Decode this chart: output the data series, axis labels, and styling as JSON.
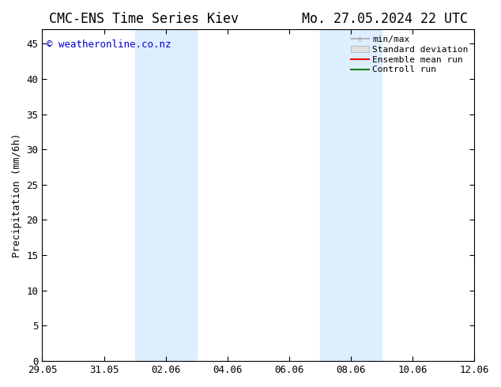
{
  "title_left": "CMC-ENS Time Series Kiev",
  "title_right": "Mo. 27.05.2024 22 UTC",
  "ylabel": "Precipitation (mm/6h)",
  "watermark": "© weatheronline.co.nz",
  "watermark_color": "#0000cc",
  "ylim": [
    0,
    47
  ],
  "yticks": [
    0,
    5,
    10,
    15,
    20,
    25,
    30,
    35,
    40,
    45
  ],
  "xtick_labels": [
    "29.05",
    "31.05",
    "02.06",
    "04.06",
    "06.06",
    "08.06",
    "10.06",
    "12.06"
  ],
  "xtick_positions": [
    0,
    2,
    4,
    6,
    8,
    10,
    12,
    14
  ],
  "background_color": "#ffffff",
  "plot_bg_color": "#ffffff",
  "shade_regions": [
    {
      "xstart": 3.0,
      "xend": 5.0
    },
    {
      "xstart": 9.0,
      "xend": 11.0
    }
  ],
  "shade_color": "#ddeeff",
  "legend_labels": [
    "min/max",
    "Standard deviation",
    "Ensemble mean run",
    "Controll run"
  ],
  "legend_line_colors": [
    "#aaaaaa",
    "#c8c8c8",
    "#ff0000",
    "#008000"
  ],
  "title_fontsize": 12,
  "label_fontsize": 9,
  "tick_fontsize": 9,
  "watermark_fontsize": 9,
  "legend_fontsize": 8
}
